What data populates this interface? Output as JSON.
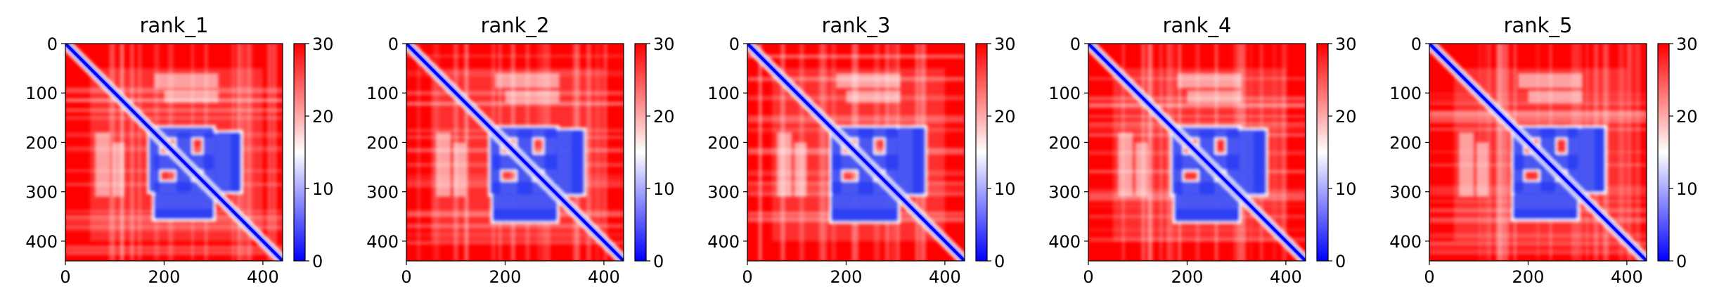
{
  "chart_data": [
    {
      "type": "heatmap",
      "title": "rank_1",
      "x_ticks": [
        0,
        200,
        400
      ],
      "y_ticks": [
        0,
        100,
        200,
        300,
        400
      ],
      "xlim": [
        0,
        440
      ],
      "ylim": [
        440,
        0
      ],
      "colorbar_ticks": [
        0,
        10,
        20,
        30
      ],
      "color_range": [
        0,
        30
      ],
      "colormap": [
        "#0000ff",
        "#ffffff",
        "#ff0000"
      ],
      "low_value_blocks": [
        [
          175,
          305
        ],
        [
          165,
          195
        ],
        [
          220,
          260
        ],
        [
          275,
          310
        ],
        [
          300,
          360
        ],
        [
          330,
          360
        ]
      ]
    },
    {
      "type": "heatmap",
      "title": "rank_2",
      "x_ticks": [
        0,
        200,
        400
      ],
      "y_ticks": [
        0,
        100,
        200,
        300,
        400
      ],
      "xlim": [
        0,
        440
      ],
      "ylim": [
        440,
        0
      ],
      "colorbar_ticks": [
        0,
        10,
        20,
        30
      ],
      "color_range": [
        0,
        30
      ],
      "colormap": [
        "#0000ff",
        "#ffffff",
        "#ff0000"
      ],
      "low_value_blocks": [
        [
          170,
          310
        ],
        [
          165,
          195
        ],
        [
          220,
          260
        ],
        [
          275,
          310
        ],
        [
          300,
          365
        ],
        [
          330,
          360
        ]
      ]
    },
    {
      "type": "heatmap",
      "title": "rank_3",
      "x_ticks": [
        0,
        200,
        400
      ],
      "y_ticks": [
        0,
        100,
        200,
        300,
        400
      ],
      "xlim": [
        0,
        440
      ],
      "ylim": [
        440,
        0
      ],
      "colorbar_ticks": [
        0,
        10,
        20,
        30
      ],
      "color_range": [
        0,
        30
      ],
      "colormap": [
        "#0000ff",
        "#ffffff",
        "#ff0000"
      ],
      "low_value_blocks": [
        [
          165,
          310
        ],
        [
          165,
          195
        ],
        [
          220,
          260
        ],
        [
          275,
          310
        ],
        [
          300,
          365
        ],
        [
          330,
          360
        ]
      ]
    },
    {
      "type": "heatmap",
      "title": "rank_4",
      "x_ticks": [
        0,
        200,
        400
      ],
      "y_ticks": [
        0,
        100,
        200,
        300,
        400
      ],
      "xlim": [
        0,
        440
      ],
      "ylim": [
        440,
        0
      ],
      "colorbar_ticks": [
        0,
        10,
        20,
        30
      ],
      "color_range": [
        0,
        30
      ],
      "colormap": [
        "#0000ff",
        "#ffffff",
        "#ff0000"
      ],
      "low_value_blocks": [
        [
          170,
          310
        ],
        [
          165,
          195
        ],
        [
          220,
          260
        ],
        [
          275,
          310
        ],
        [
          300,
          365
        ],
        [
          330,
          360
        ]
      ]
    },
    {
      "type": "heatmap",
      "title": "rank_5",
      "x_ticks": [
        0,
        200,
        400
      ],
      "y_ticks": [
        0,
        100,
        200,
        300,
        400
      ],
      "xlim": [
        0,
        440
      ],
      "ylim": [
        440,
        0
      ],
      "colorbar_ticks": [
        0,
        10,
        20,
        30
      ],
      "color_range": [
        0,
        30
      ],
      "colormap": [
        "#0000ff",
        "#ffffff",
        "#ff0000"
      ],
      "low_value_blocks": [
        [
          165,
          305
        ],
        [
          165,
          195
        ],
        [
          220,
          260
        ],
        [
          275,
          310
        ],
        [
          300,
          360
        ],
        [
          330,
          360
        ]
      ]
    }
  ]
}
